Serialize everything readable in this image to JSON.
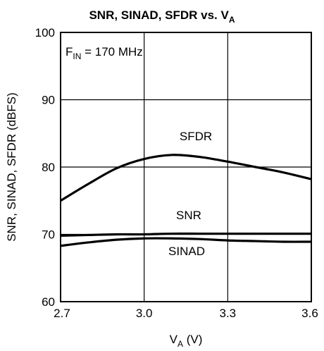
{
  "chart_data": {
    "type": "line",
    "title_main": "SNR, SINAD, SFDR vs. V",
    "title_sub": "A",
    "ylabel": "SNR, SINAD, SFDR (dBFS)",
    "xlabel_main": "V",
    "xlabel_sub": "A",
    "xlabel_unit": " (V)",
    "xlim": [
      2.7,
      3.6
    ],
    "ylim": [
      60,
      100
    ],
    "xticks": [
      "2.7",
      "3.0",
      "3.3",
      "3.6"
    ],
    "yticks": [
      "60",
      "70",
      "80",
      "90",
      "100"
    ],
    "xtick_values": [
      2.7,
      3.0,
      3.3,
      3.6
    ],
    "ytick_values": [
      60,
      70,
      80,
      90,
      100
    ],
    "grid": true,
    "annotation": {
      "prefix": "F",
      "sub": "IN",
      "suffix": " = 170 MHz"
    },
    "series": [
      {
        "name": "SFDR",
        "x": [
          2.7,
          2.8,
          2.9,
          3.0,
          3.1,
          3.2,
          3.3,
          3.4,
          3.5,
          3.6
        ],
        "y": [
          75.0,
          77.5,
          79.8,
          81.2,
          81.8,
          81.5,
          80.8,
          80.0,
          79.2,
          78.2
        ]
      },
      {
        "name": "SNR",
        "x": [
          2.7,
          2.8,
          2.9,
          3.0,
          3.1,
          3.2,
          3.3,
          3.4,
          3.5,
          3.6
        ],
        "y": [
          69.8,
          69.9,
          70.0,
          70.0,
          70.1,
          70.1,
          70.1,
          70.1,
          70.1,
          70.1
        ]
      },
      {
        "name": "SINAD",
        "x": [
          2.7,
          2.8,
          2.9,
          3.0,
          3.1,
          3.2,
          3.3,
          3.4,
          3.5,
          3.6
        ],
        "y": [
          68.3,
          68.8,
          69.2,
          69.4,
          69.4,
          69.3,
          69.1,
          69.0,
          68.9,
          68.9
        ]
      }
    ]
  }
}
